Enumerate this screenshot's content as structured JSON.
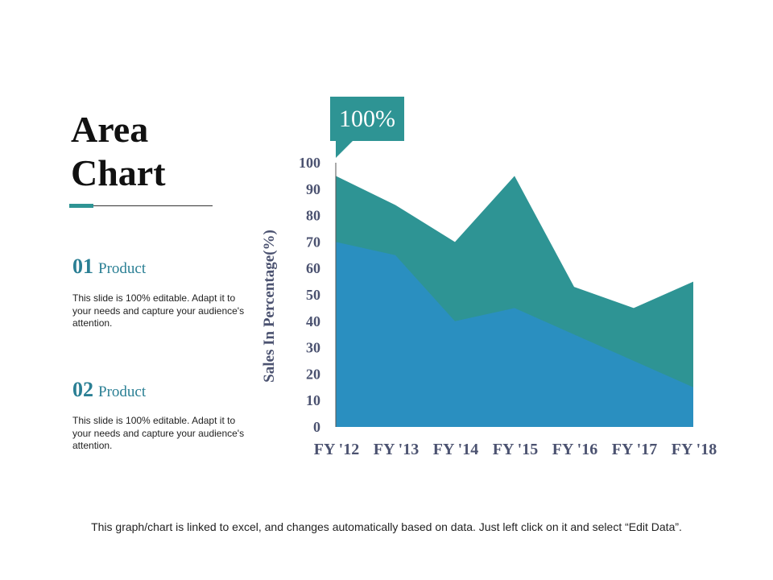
{
  "slide": {
    "title_line1": "Area",
    "title_line2": "Chart",
    "callout": "100%",
    "items": [
      {
        "num": "01",
        "label": "Product",
        "text": "This slide is 100% editable. Adapt it to your needs and capture your audience's attention."
      },
      {
        "num": "02",
        "label": "Product",
        "text": "This slide is 100% editable. Adapt it to your needs and capture your audience's attention."
      }
    ],
    "footer": "This graph/chart is linked to excel, and changes automatically based on data. Just left click on it and select “Edit Data”."
  },
  "colors": {
    "back_series": "#2e9494",
    "front_series": "#2a8fc0",
    "accent": "#2e9494",
    "axis_text": "#4b5270"
  },
  "chart_data": {
    "type": "area",
    "categories": [
      "FY '12",
      "FY '13",
      "FY '14",
      "FY '15",
      "FY '16",
      "FY '17",
      "FY '18"
    ],
    "series": [
      {
        "values": [
          95,
          84,
          70,
          95,
          53,
          45,
          55
        ]
      },
      {
        "values": [
          70,
          65,
          40,
          45,
          35,
          25,
          15
        ]
      }
    ],
    "ylabel": "Sales In Percentage(%)",
    "ylim": [
      0,
      100
    ],
    "yticks": [
      0,
      10,
      20,
      30,
      40,
      50,
      60,
      70,
      80,
      90,
      100
    ],
    "grid": false,
    "legend": "none"
  }
}
